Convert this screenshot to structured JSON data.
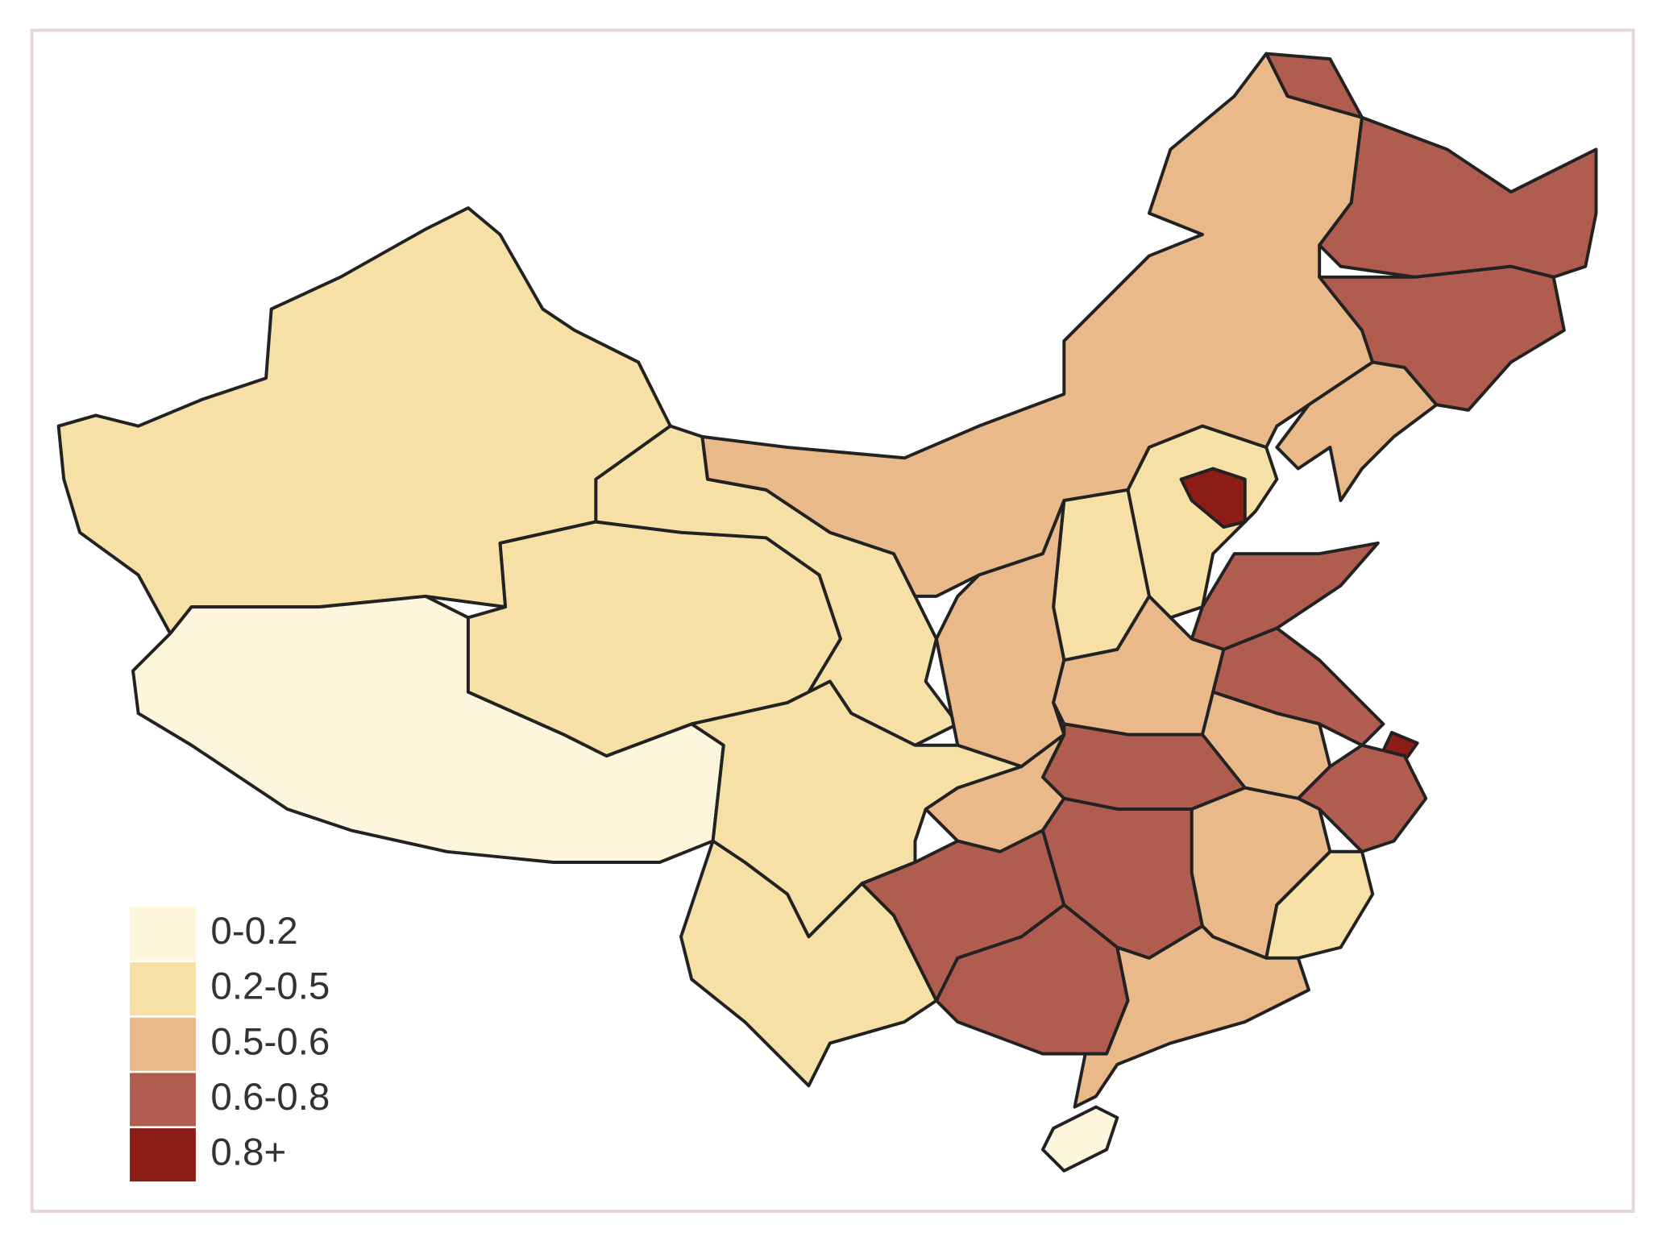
{
  "map": {
    "legend": [
      {
        "label": "0-0.2",
        "color": "#fdf5dc"
      },
      {
        "label": "0.2-0.5",
        "color": "#f6e0a6"
      },
      {
        "label": "0.5-0.6",
        "color": "#e9b98a"
      },
      {
        "label": "0.6-0.8",
        "color": "#b05c4e"
      },
      {
        "label": "0.8+",
        "color": "#8b1d16"
      }
    ],
    "regions": [
      1,
      0,
      1,
      1,
      2,
      3,
      3,
      2,
      1,
      4,
      1,
      2,
      3,
      2,
      3,
      4,
      2,
      3,
      3,
      2,
      1,
      1,
      3,
      3,
      2,
      1,
      3,
      2,
      0
    ]
  }
}
